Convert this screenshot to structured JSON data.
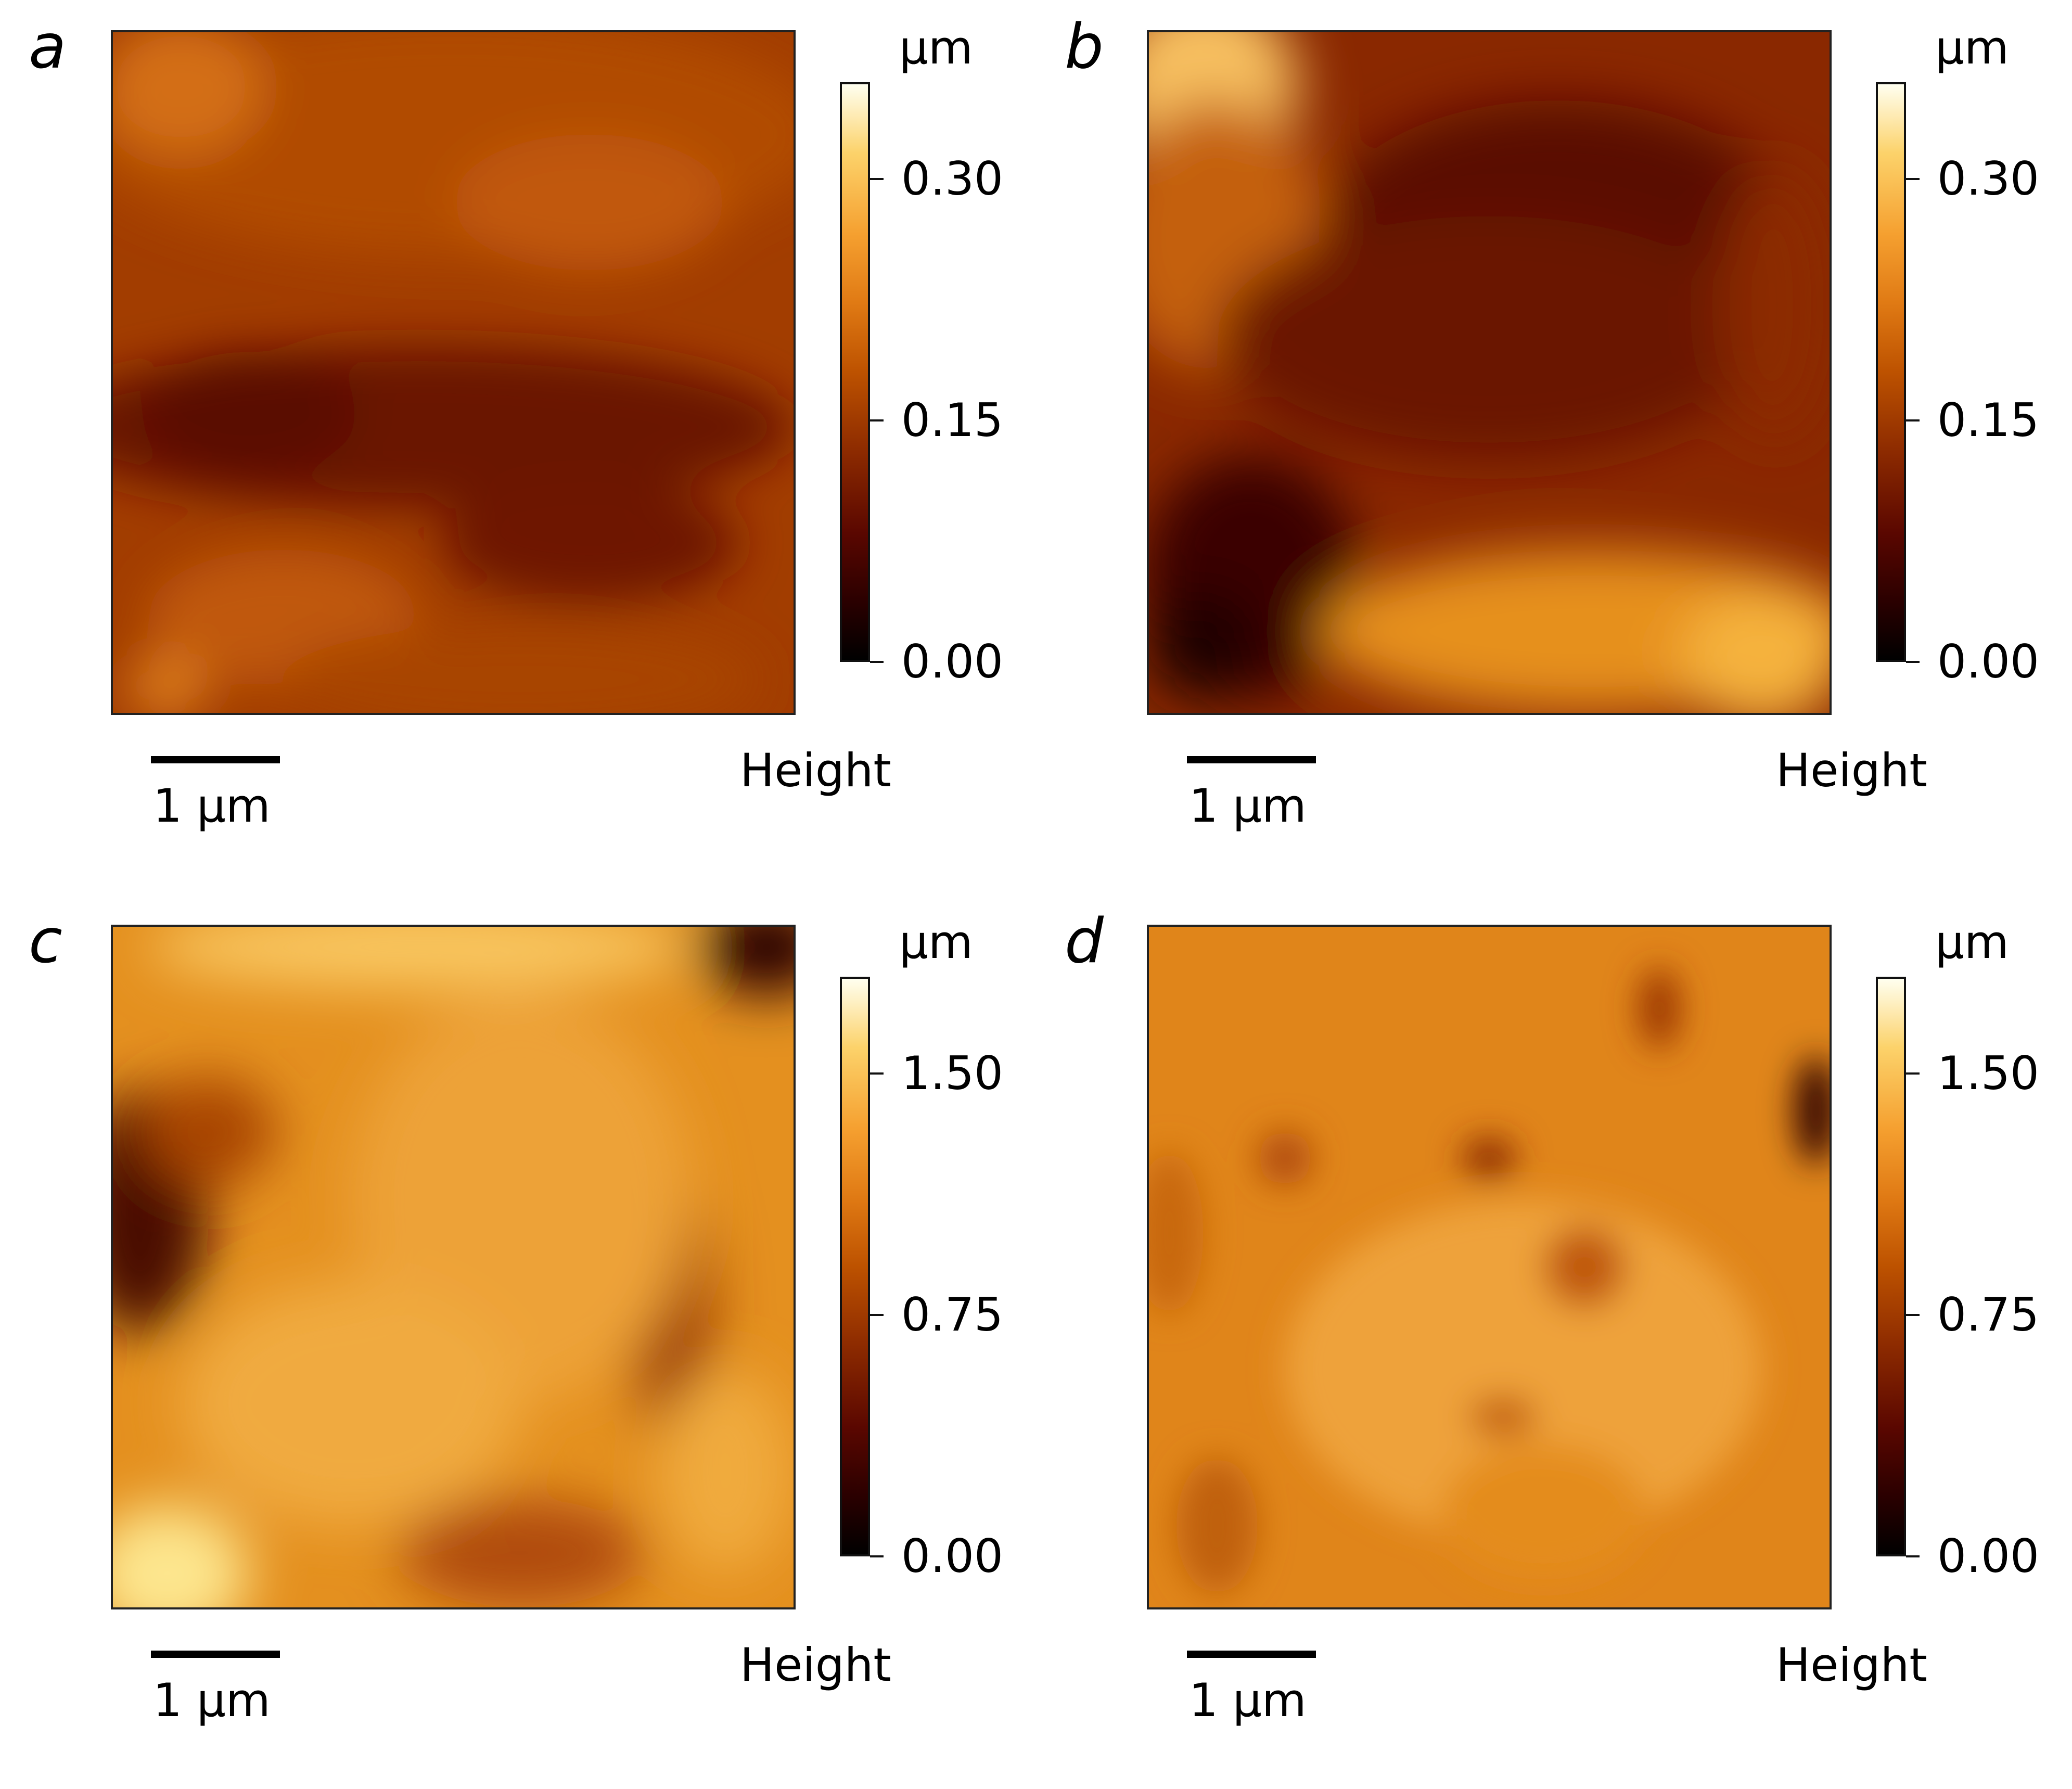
{
  "panels": [
    {
      "letter": "a",
      "unit": "µm",
      "colorbar_ticks": [
        {
          "value": 0.0,
          "label": "0.00"
        },
        {
          "value": 0.15,
          "label": "0.15"
        },
        {
          "value": 0.3,
          "label": "0.30"
        }
      ],
      "colorbar_range": [
        0,
        0.36
      ],
      "scale_label": "1 µm",
      "channel": "Height"
    },
    {
      "letter": "b",
      "unit": "µm",
      "colorbar_ticks": [
        {
          "value": 0.0,
          "label": "0.00"
        },
        {
          "value": 0.15,
          "label": "0.15"
        },
        {
          "value": 0.3,
          "label": "0.30"
        }
      ],
      "colorbar_range": [
        0,
        0.36
      ],
      "scale_label": "1 µm",
      "channel": "Height"
    },
    {
      "letter": "c",
      "unit": "µm",
      "colorbar_ticks": [
        {
          "value": 0.0,
          "label": "0.00"
        },
        {
          "value": 0.75,
          "label": "0.75"
        },
        {
          "value": 1.5,
          "label": "1.50"
        }
      ],
      "colorbar_range": [
        0,
        1.8
      ],
      "scale_label": "1 µm",
      "channel": "Height"
    },
    {
      "letter": "d",
      "unit": "µm",
      "colorbar_ticks": [
        {
          "value": 0.0,
          "label": "0.00"
        },
        {
          "value": 0.75,
          "label": "0.75"
        },
        {
          "value": 1.5,
          "label": "1.50"
        }
      ],
      "colorbar_range": [
        0,
        1.8
      ],
      "scale_label": "1 µm",
      "channel": "Height"
    }
  ]
}
